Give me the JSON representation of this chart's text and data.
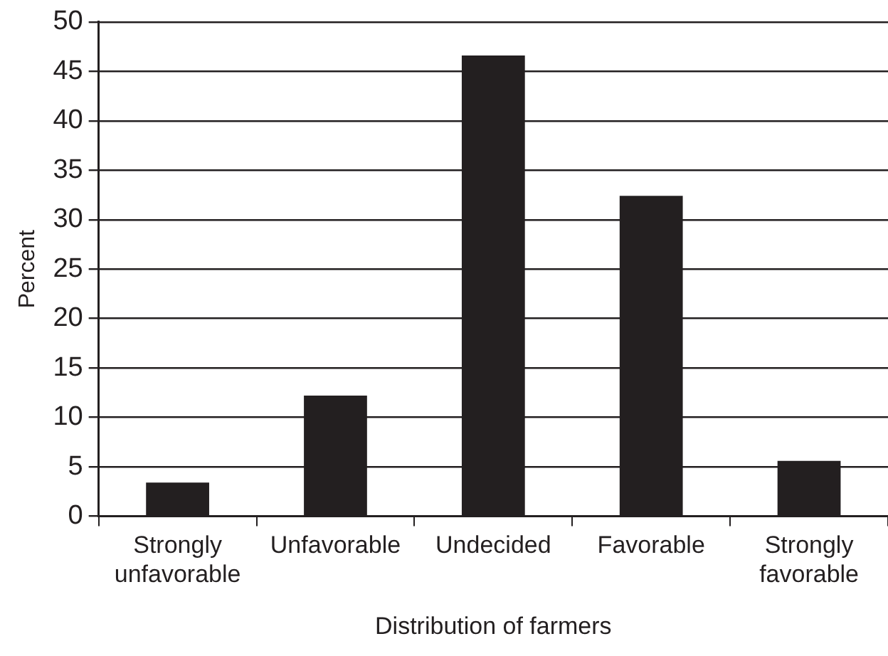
{
  "chart_data": {
    "type": "bar",
    "xlabel": "Distribution of farmers",
    "ylabel": "Percent",
    "categories": [
      "Strongly unfavorable",
      "Unfavorable",
      "Undecided",
      "Favorable",
      "Strongly favorable"
    ],
    "values": [
      3.4,
      12.2,
      46.6,
      32.4,
      5.6
    ],
    "color": "#231f20",
    "ylim": [
      0,
      50
    ],
    "yticks": [
      0,
      5,
      10,
      15,
      20,
      25,
      30,
      35,
      40,
      45,
      50
    ],
    "grid": "y",
    "legend": false
  }
}
